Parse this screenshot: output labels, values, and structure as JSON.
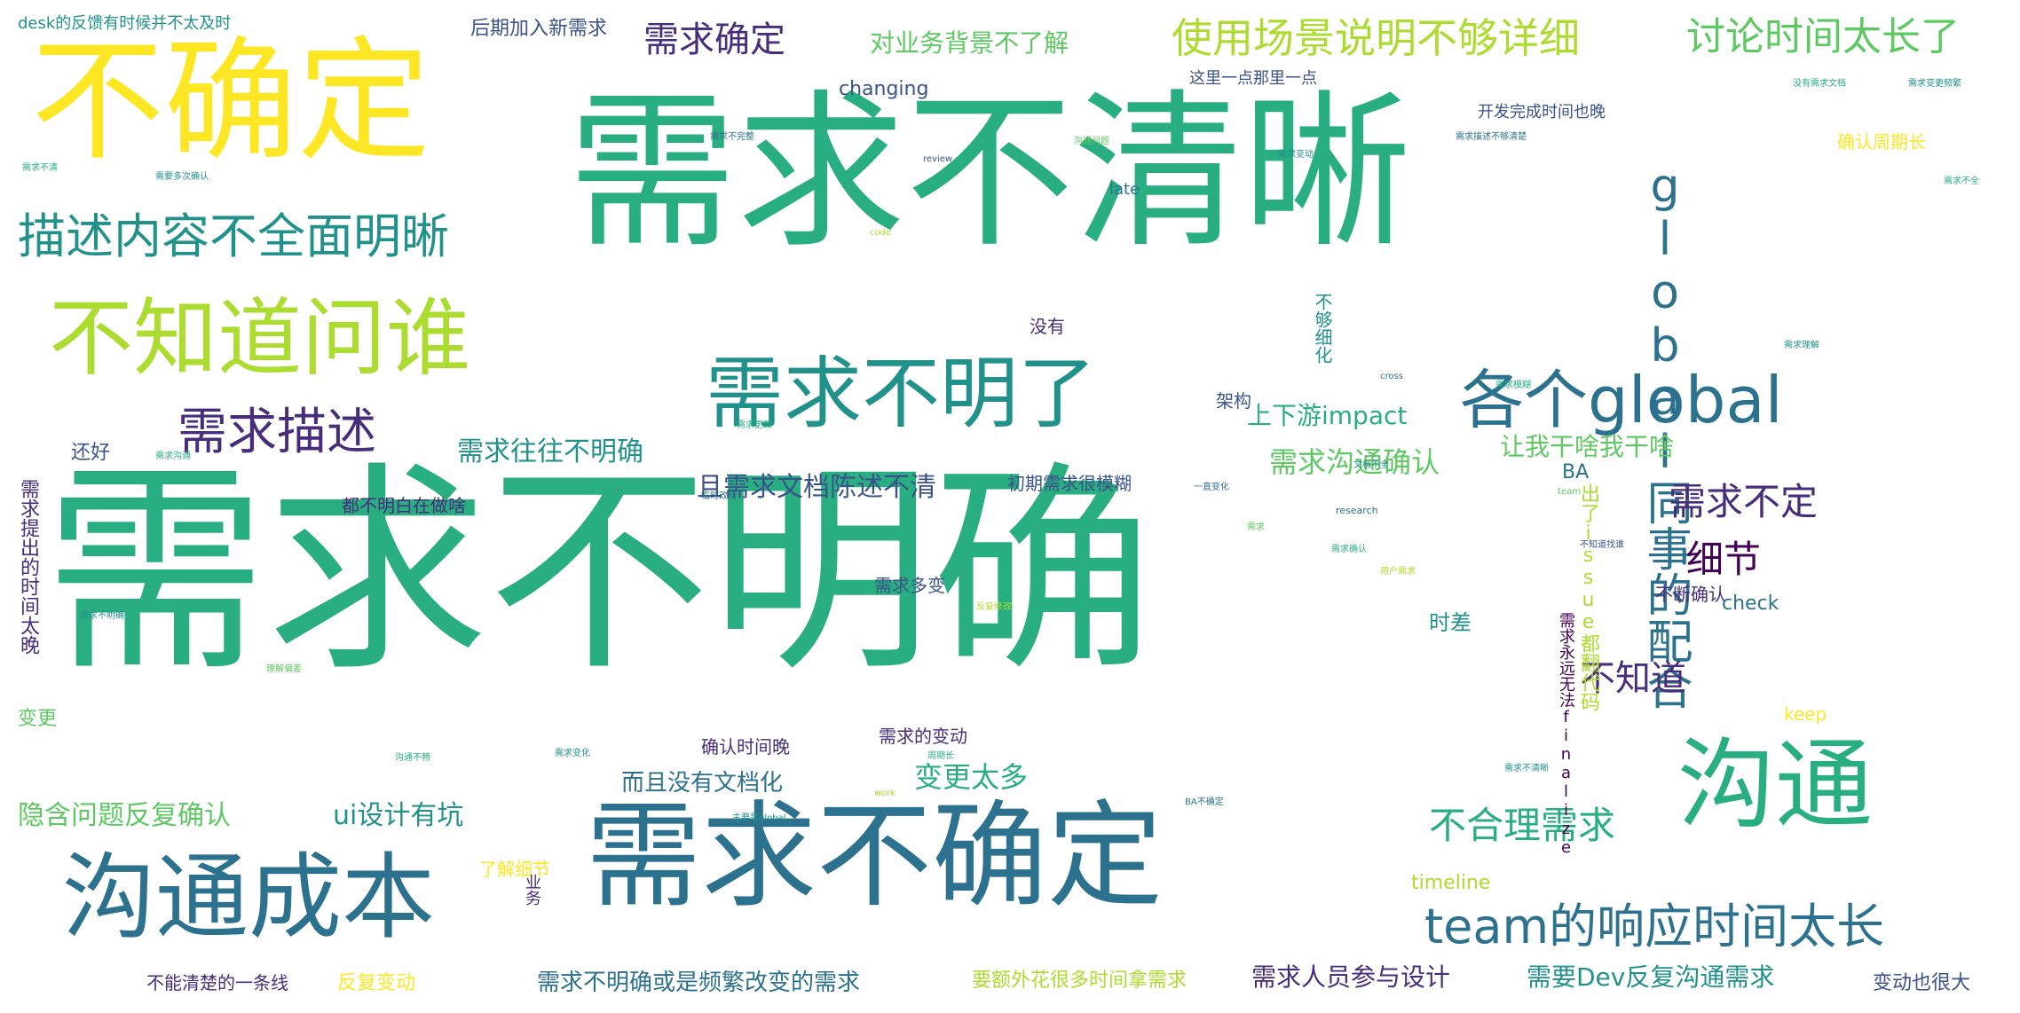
{
  "words": {
    "w01": "需求不明确",
    "w02": "需求不清晰",
    "w03": "不确定",
    "w04": "需求不确定",
    "w05": "沟通成本",
    "w06": "沟通",
    "w07": "不知道问谁",
    "w08": "需求不明了",
    "w09": "各个global",
    "w10": "global同事的配合",
    "w11": "描述内容不全面明晰",
    "w12": "team的响应时间太长",
    "w13": "需求描述",
    "w14": "使用场景说明不够详细",
    "w15": "讨论时间太长了",
    "w16": "需求确定",
    "w17": "对业务背景不了解",
    "w18": "需求不定",
    "w19": "细节",
    "w20": "不知道",
    "w21": "不合理需求",
    "w22": "需求沟通确认",
    "w23": "需求往往不明确",
    "w24": "且需求文档陈述不清",
    "w25": "上下游impact",
    "w26": "让我干啥我干啥",
    "w27": "隐含问题反复确认",
    "w28": "ui设计有坑",
    "w29": "变更太多",
    "w30": "而且没有文档化",
    "w31": "需求不明确或是频繁改变的需求",
    "w32": "需求人员参与设计",
    "w33": "需要Dev反复沟通需求",
    "w34": "要额外花很多时间拿需求",
    "w35": "不能清楚的一条线",
    "w36": "反复变动",
    "w37": "变动也很大",
    "w38": "后期加入新需求",
    "w39": "desk的反馈有时候并不太及时",
    "w40": "changing",
    "w41": "这里一点那里一点",
    "w42": "开发完成时间也晚",
    "w43": "确认周期长",
    "w44": "没有",
    "w45": "架构",
    "w46": "BA",
    "w47": "还好",
    "w48": "都不明白在做啥",
    "w49": "初期需求很模糊",
    "w50": "需求多变",
    "w51": "时差",
    "w52": "不断确认",
    "w53": "check",
    "w54": "keep",
    "w55": "需求的变动",
    "w56": "确认时间晚",
    "w57": "了解细节",
    "w58": "timeline",
    "w59": "变更",
    "w60": "需求提出的时间太晚",
    "w61": "出了issue都翻代码",
    "w62": "需求永远无法finalize",
    "w63": "late",
    "w64": "不够细化",
    "w65": "需求不清",
    "w66": "业务",
    "w67": "需要多次确认",
    "w68": "需求不完整",
    "w69": "沟通问题",
    "w70": "需求变动",
    "w71": "需求描述不够清楚",
    "w72": "没有需求文档",
    "w73": "需求变更频繁",
    "w74": "review",
    "w75": "code",
    "w76": "cross",
    "w77": "team",
    "w78": "需求沟通",
    "w79": "需求不全",
    "w80": "需求理解",
    "w81": "需求变化",
    "w82": "work",
    "w83": "周期长",
    "w84": "主要是global",
    "w85": "BA不确定",
    "w86": "需求不清晰",
    "w87": "不知道找谁",
    "w88": "需求模糊",
    "w89": "用户需求",
    "w90": "需求确认",
    "w91": "research",
    "w92": "需求",
    "w93": "文档不全",
    "w94": "一直变化",
    "w95": "需求更改",
    "w96": "临时改动",
    "w97": "反复修改",
    "w98": "理解偏差",
    "w99": "需求不明确",
    "w100": "沟通不畅"
  }
}
